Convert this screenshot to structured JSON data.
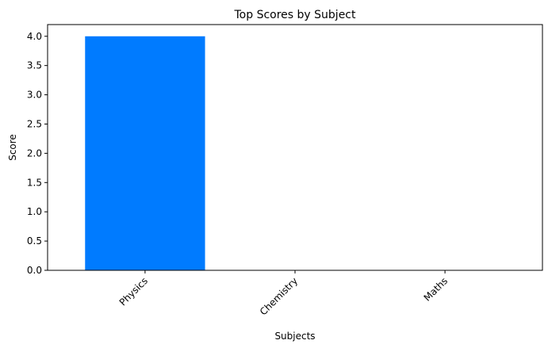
{
  "chart_data": {
    "type": "bar",
    "title": "Top Scores by Subject",
    "xlabel": "Subjects",
    "ylabel": "Score",
    "categories": [
      "Physics",
      "Chemistry",
      "Maths"
    ],
    "values": [
      4,
      0,
      0
    ],
    "ylim": [
      0,
      4.2
    ],
    "yticks": [
      "0.0",
      "0.5",
      "1.0",
      "1.5",
      "2.0",
      "2.5",
      "3.0",
      "3.5",
      "4.0"
    ],
    "bar_color": "#007bff",
    "grid": false,
    "legend": "none"
  }
}
